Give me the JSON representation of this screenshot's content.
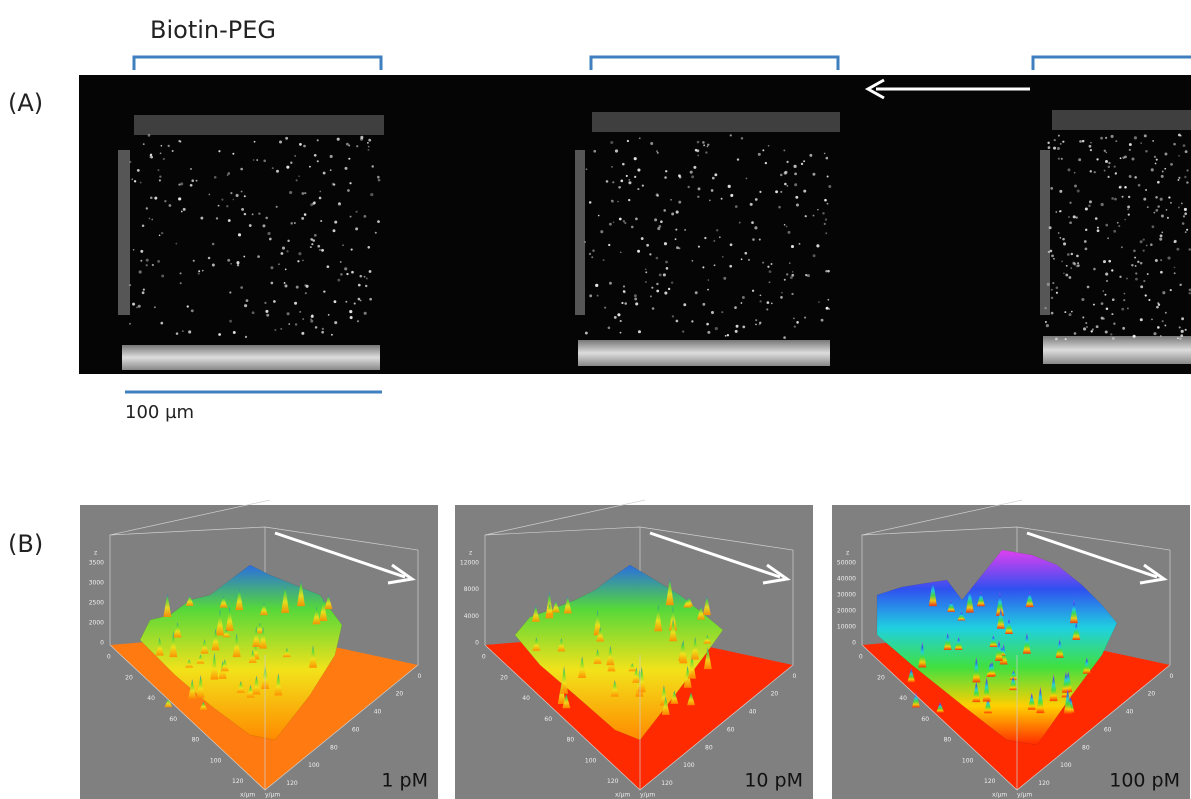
{
  "header": {
    "title": "Biotin-PEG"
  },
  "panel_a": {
    "label": "(A)",
    "scale_bar": "100 µm"
  },
  "panel_b": {
    "label": "(B)",
    "plots": [
      {
        "concentration": "1 pM",
        "z_axis": "z",
        "z_ticks": [
          "3500",
          "3000",
          "2500",
          "2000",
          "0"
        ],
        "x_axis": "x/µm",
        "y_axis": "y/µm",
        "x_ticks": [
          "0",
          "20",
          "40",
          "60",
          "80",
          "100",
          "120"
        ],
        "y_ticks": [
          "0",
          "20",
          "40",
          "60",
          "80",
          "100",
          "120"
        ]
      },
      {
        "concentration": "10 pM",
        "z_axis": "z",
        "z_ticks": [
          "12000",
          "8000",
          "4000",
          "0"
        ],
        "x_axis": "x/µm",
        "y_axis": "y/µm",
        "x_ticks": [
          "0",
          "20",
          "40",
          "60",
          "80",
          "100",
          "120"
        ],
        "y_ticks": [
          "0",
          "20",
          "40",
          "60",
          "80",
          "100",
          "120"
        ]
      },
      {
        "concentration": "100 pM",
        "z_axis": "z",
        "z_ticks": [
          "50000",
          "40000",
          "30000",
          "20000",
          "10000",
          "0"
        ],
        "x_axis": "x/µm",
        "y_axis": "y/µm",
        "x_ticks": [
          "0",
          "20",
          "40",
          "60",
          "80",
          "100",
          "120"
        ],
        "y_ticks": [
          "0",
          "20",
          "40",
          "60",
          "80",
          "100",
          "120"
        ]
      }
    ]
  }
}
